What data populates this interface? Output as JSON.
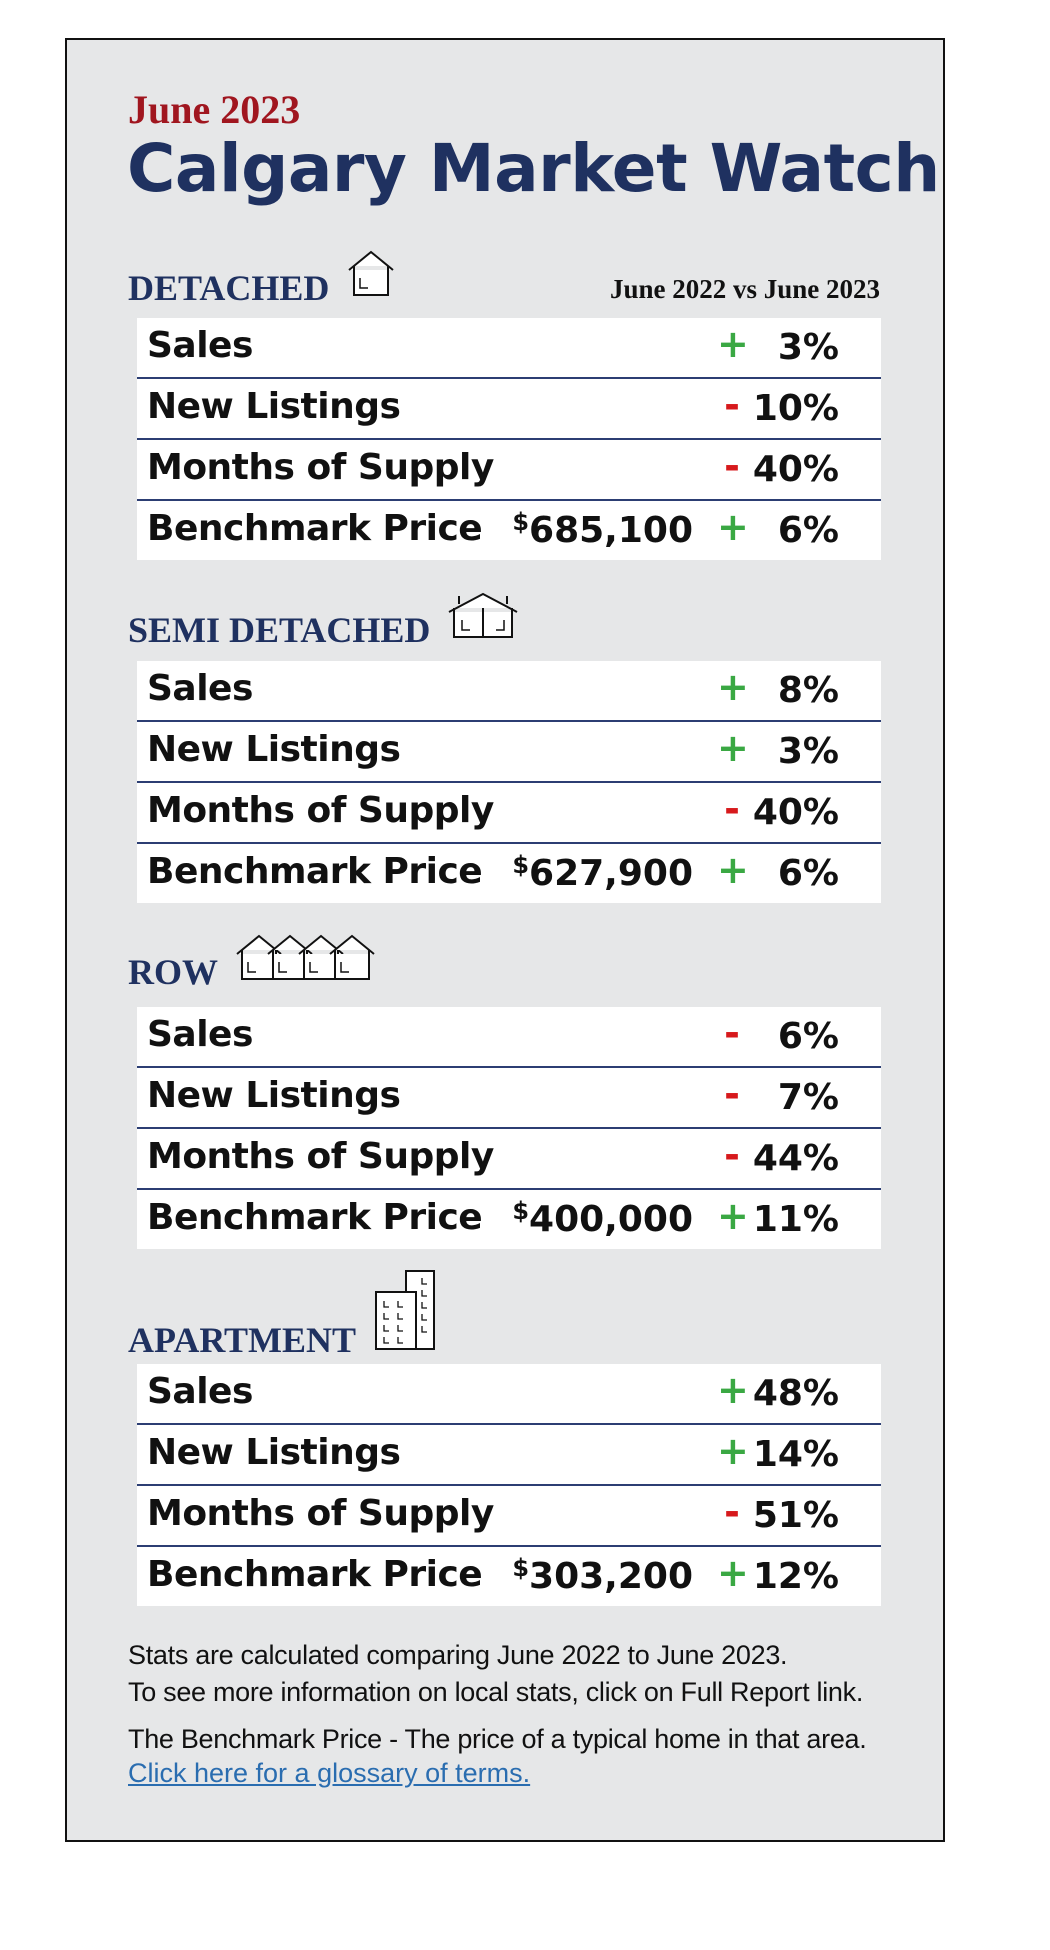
{
  "header": {
    "month": "June 2023",
    "title": "Calgary Market Watch",
    "comparison": "June 2022 vs June 2023"
  },
  "sections": [
    {
      "name": "DETACHED",
      "rows": [
        {
          "label": "Sales",
          "sign": "+",
          "change": "3%"
        },
        {
          "label": "New Listings",
          "sign": "-",
          "change": "10%"
        },
        {
          "label": "Months of Supply",
          "sign": "-",
          "change": "40%"
        },
        {
          "label": "Benchmark Price",
          "currency": "$",
          "price": "685,100",
          "sign": "+",
          "change": "6%"
        }
      ]
    },
    {
      "name": "SEMI DETACHED",
      "rows": [
        {
          "label": "Sales",
          "sign": "+",
          "change": "8%"
        },
        {
          "label": "New Listings",
          "sign": "+",
          "change": "3%"
        },
        {
          "label": "Months of Supply",
          "sign": "-",
          "change": "40%"
        },
        {
          "label": "Benchmark Price",
          "currency": "$",
          "price": "627,900",
          "sign": "+",
          "change": "6%"
        }
      ]
    },
    {
      "name": "ROW",
      "rows": [
        {
          "label": "Sales",
          "sign": "-",
          "change": "6%"
        },
        {
          "label": "New Listings",
          "sign": "-",
          "change": "7%"
        },
        {
          "label": "Months of Supply",
          "sign": "-",
          "change": "44%"
        },
        {
          "label": "Benchmark Price",
          "currency": "$",
          "price": "400,000",
          "sign": "+",
          "change": "11%"
        }
      ]
    },
    {
      "name": "APARTMENT",
      "rows": [
        {
          "label": "Sales",
          "sign": "+",
          "change": "48%"
        },
        {
          "label": "New Listings",
          "sign": "+",
          "change": "14%"
        },
        {
          "label": "Months of Supply",
          "sign": "-",
          "change": "51%"
        },
        {
          "label": "Benchmark Price",
          "currency": "$",
          "price": "303,200",
          "sign": "+",
          "change": "12%"
        }
      ]
    }
  ],
  "footer": {
    "notes": [
      "Stats are calculated comparing June 2022 to June 2023.",
      "To see more information on local stats, click on Full Report link.",
      "The Benchmark Price - The price of a typical home in that area."
    ],
    "link": "Click here for a glossary of terms."
  }
}
